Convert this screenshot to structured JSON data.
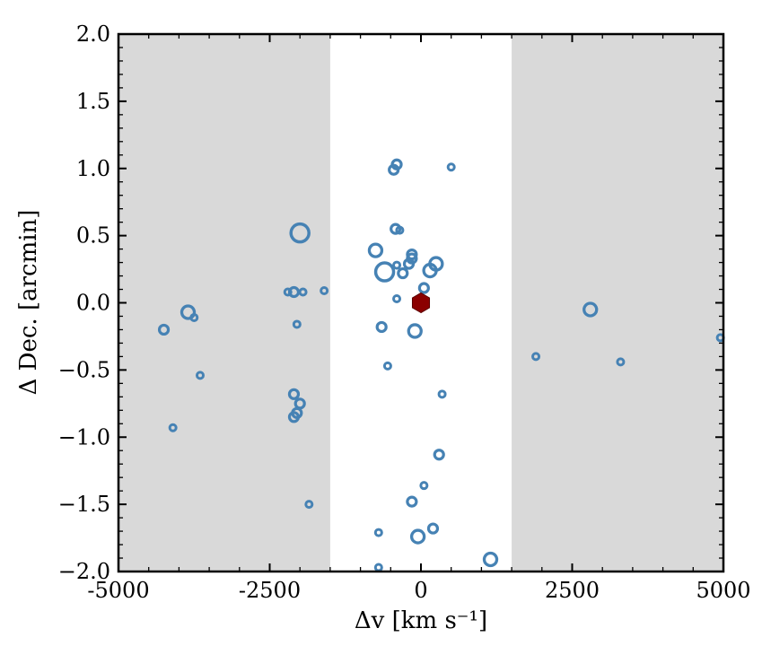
{
  "chart_data": {
    "type": "scatter",
    "xlabel": "Δv [km s⁻¹]",
    "ylabel": "Δ Dec. [arcmin]",
    "xlim": [
      -5000,
      5000
    ],
    "ylim": [
      -2.0,
      2.0
    ],
    "x_ticks": [
      -5000,
      -2500,
      0,
      2500,
      5000
    ],
    "x_tick_labels": [
      "-5000",
      "-2500",
      "0",
      "2500",
      "5000"
    ],
    "y_ticks": [
      -2.0,
      -1.5,
      -1.0,
      -0.5,
      0.0,
      0.5,
      1.0,
      1.5,
      2.0
    ],
    "y_tick_labels": [
      "−2.0",
      "−1.5",
      "−1.0",
      "−0.5",
      "0.0",
      "0.5",
      "1.0",
      "1.5",
      "2.0"
    ],
    "shaded_ranges": [
      [
        -5000,
        -1500
      ],
      [
        1500,
        5000
      ]
    ],
    "shade_color": "#d9d9d9",
    "point_color": "#4682b4",
    "marker_color": "#8b0000",
    "grid": false,
    "center_marker": {
      "shape": "hexagon",
      "x": 0,
      "y": 0
    },
    "points": [
      {
        "x": -4250,
        "y": -0.2,
        "size": "small"
      },
      {
        "x": -3850,
        "y": -0.07,
        "size": "medium"
      },
      {
        "x": -3750,
        "y": -0.11,
        "size": "tiny"
      },
      {
        "x": -3650,
        "y": -0.54,
        "size": "tiny"
      },
      {
        "x": -4100,
        "y": -0.93,
        "size": "tiny"
      },
      {
        "x": -2000,
        "y": 0.52,
        "size": "large"
      },
      {
        "x": -2200,
        "y": 0.08,
        "size": "tiny"
      },
      {
        "x": -2100,
        "y": 0.08,
        "size": "small"
      },
      {
        "x": -1950,
        "y": 0.08,
        "size": "tiny"
      },
      {
        "x": -1600,
        "y": 0.09,
        "size": "tiny"
      },
      {
        "x": -2050,
        "y": -0.16,
        "size": "tiny"
      },
      {
        "x": -2100,
        "y": -0.68,
        "size": "small"
      },
      {
        "x": -2000,
        "y": -0.75,
        "size": "small"
      },
      {
        "x": -2050,
        "y": -0.82,
        "size": "small"
      },
      {
        "x": -2100,
        "y": -0.85,
        "size": "small"
      },
      {
        "x": -1850,
        "y": -1.5,
        "size": "tiny"
      },
      {
        "x": -400,
        "y": 1.03,
        "size": "small"
      },
      {
        "x": -450,
        "y": 0.99,
        "size": "small"
      },
      {
        "x": 500,
        "y": 1.01,
        "size": "tiny"
      },
      {
        "x": -420,
        "y": 0.55,
        "size": "small"
      },
      {
        "x": -350,
        "y": 0.54,
        "size": "tiny"
      },
      {
        "x": -750,
        "y": 0.39,
        "size": "medium"
      },
      {
        "x": -150,
        "y": 0.36,
        "size": "small"
      },
      {
        "x": -150,
        "y": 0.33,
        "size": "small"
      },
      {
        "x": -400,
        "y": 0.28,
        "size": "tiny"
      },
      {
        "x": -200,
        "y": 0.29,
        "size": "small"
      },
      {
        "x": 250,
        "y": 0.29,
        "size": "medium"
      },
      {
        "x": -600,
        "y": 0.23,
        "size": "large"
      },
      {
        "x": -300,
        "y": 0.22,
        "size": "small"
      },
      {
        "x": 150,
        "y": 0.24,
        "size": "medium"
      },
      {
        "x": 50,
        "y": 0.11,
        "size": "small"
      },
      {
        "x": -400,
        "y": 0.03,
        "size": "tiny"
      },
      {
        "x": -650,
        "y": -0.18,
        "size": "small"
      },
      {
        "x": -100,
        "y": -0.21,
        "size": "medium"
      },
      {
        "x": -550,
        "y": -0.47,
        "size": "tiny"
      },
      {
        "x": 350,
        "y": -0.68,
        "size": "tiny"
      },
      {
        "x": 300,
        "y": -1.13,
        "size": "small"
      },
      {
        "x": 50,
        "y": -1.36,
        "size": "tiny"
      },
      {
        "x": -150,
        "y": -1.48,
        "size": "small"
      },
      {
        "x": -700,
        "y": -1.71,
        "size": "tiny"
      },
      {
        "x": 200,
        "y": -1.68,
        "size": "small"
      },
      {
        "x": -50,
        "y": -1.74,
        "size": "medium"
      },
      {
        "x": -700,
        "y": -1.97,
        "size": "tiny"
      },
      {
        "x": 1150,
        "y": -1.91,
        "size": "medium"
      },
      {
        "x": 1900,
        "y": -0.4,
        "size": "tiny"
      },
      {
        "x": 2800,
        "y": -0.05,
        "size": "medium"
      },
      {
        "x": 3300,
        "y": -0.44,
        "size": "tiny"
      },
      {
        "x": 4950,
        "y": -0.26,
        "size": "tiny"
      }
    ]
  }
}
